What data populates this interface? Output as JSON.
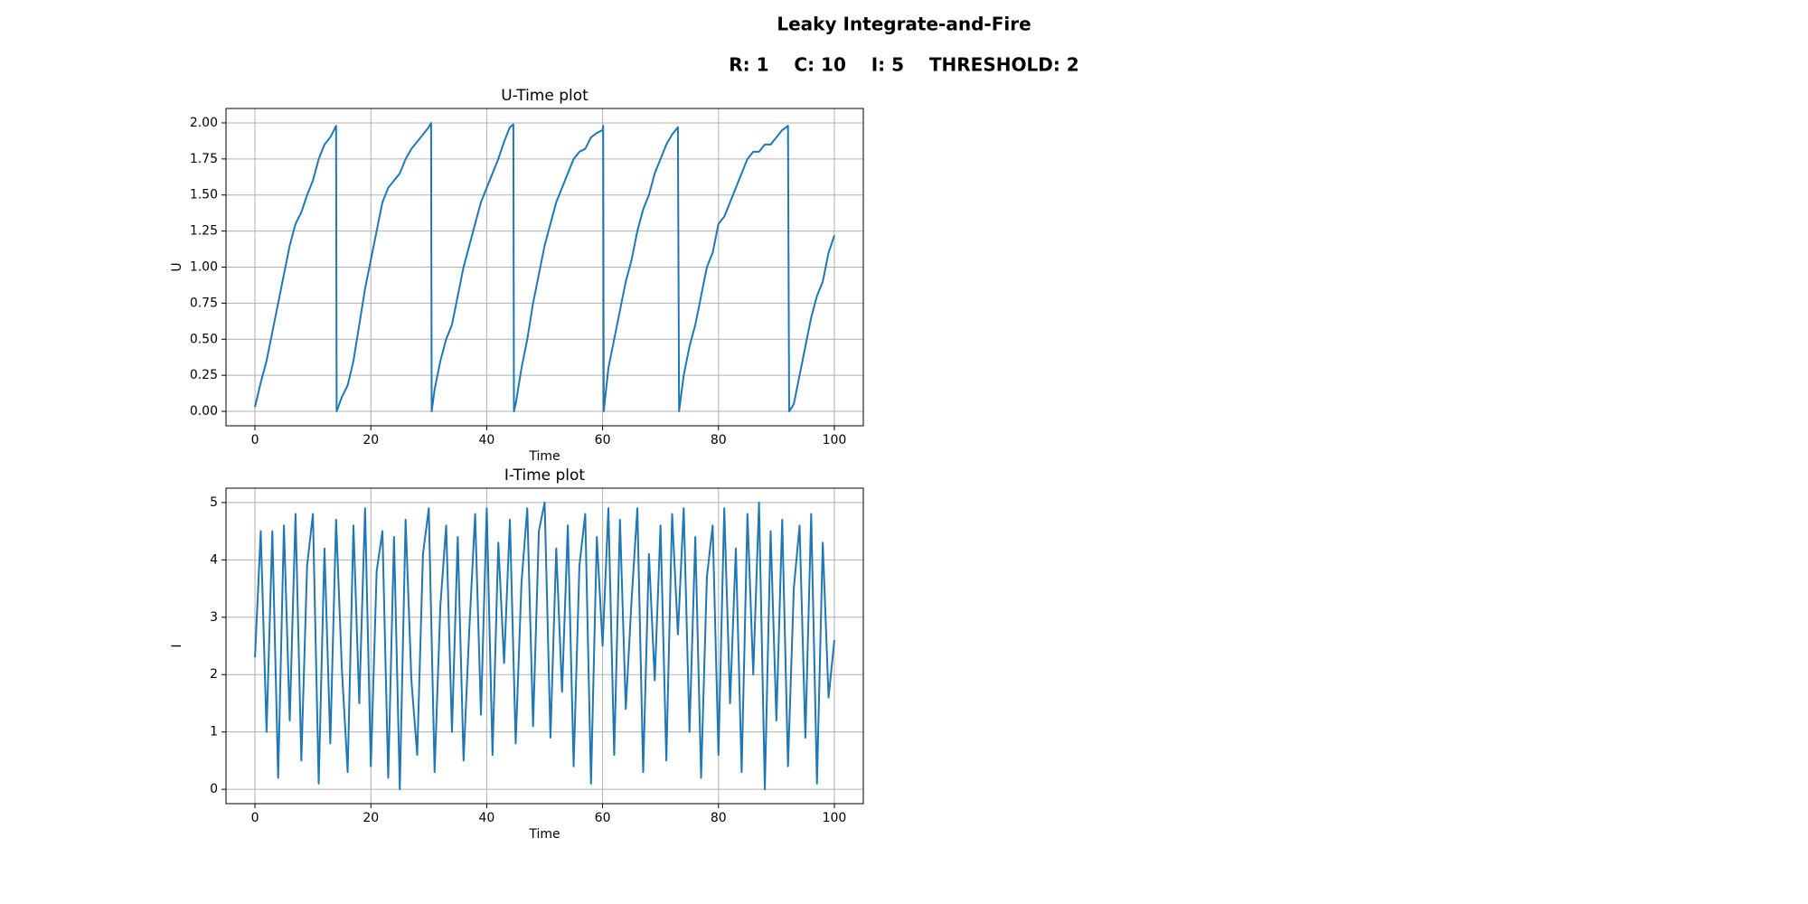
{
  "title": "Leaky Integrate-and-Fire",
  "subtitle": "R: 1    C: 10    I: 5    THRESHOLD: 2",
  "chart_data": [
    {
      "type": "line",
      "title": "U-Time plot",
      "x_label": "Time",
      "y_label": "U",
      "grid": true,
      "color": "#1f77b4",
      "xlim": [
        -5,
        105
      ],
      "xticks": [
        0,
        20,
        40,
        60,
        80,
        100
      ],
      "ylim": [
        -0.1,
        2.1
      ],
      "yticks": [
        {
          "value": 0,
          "label": "0.00"
        },
        {
          "value": 0.25,
          "label": "0.25"
        },
        {
          "value": 0.5,
          "label": "0.50"
        },
        {
          "value": 0.75,
          "label": "0.75"
        },
        {
          "value": 1,
          "label": "1.00"
        },
        {
          "value": 1.25,
          "label": "1.25"
        },
        {
          "value": 1.5,
          "label": "1.50"
        },
        {
          "value": 1.75,
          "label": "1.75"
        },
        {
          "value": 2,
          "label": "2.00"
        }
      ],
      "x": [
        0,
        1,
        2,
        3,
        4,
        5,
        6,
        7,
        8,
        9,
        10,
        11,
        12,
        13,
        14,
        14.1,
        15,
        16,
        17,
        18,
        19,
        20,
        21,
        22,
        23,
        24,
        25,
        26,
        27,
        28,
        29,
        30,
        30.4,
        30.5,
        31,
        32,
        33,
        34,
        35,
        36,
        37,
        38,
        39,
        40,
        41,
        42,
        43,
        44,
        44.6,
        44.7,
        45,
        46,
        47,
        48,
        49,
        50,
        51,
        52,
        53,
        54,
        55,
        56,
        57,
        58,
        59,
        60,
        60.1,
        60.2,
        61,
        62,
        63,
        64,
        65,
        66,
        67,
        68,
        69,
        70,
        71,
        72,
        73,
        73.2,
        74,
        75,
        76,
        77,
        78,
        79,
        80,
        81,
        82,
        83,
        84,
        85,
        86,
        87,
        88,
        89,
        90,
        91,
        92,
        92.2,
        93,
        94,
        95,
        96,
        97,
        98,
        99,
        100
      ],
      "values": [
        0.03,
        0.2,
        0.35,
        0.55,
        0.75,
        0.95,
        1.15,
        1.3,
        1.38,
        1.5,
        1.6,
        1.75,
        1.85,
        1.9,
        1.98,
        0,
        0.1,
        0.18,
        0.35,
        0.6,
        0.85,
        1.05,
        1.25,
        1.45,
        1.55,
        1.6,
        1.65,
        1.75,
        1.82,
        1.87,
        1.92,
        1.97,
        2.0,
        0,
        0.15,
        0.35,
        0.5,
        0.6,
        0.8,
        1.0,
        1.15,
        1.3,
        1.45,
        1.55,
        1.65,
        1.75,
        1.87,
        1.97,
        1.99,
        0,
        0.05,
        0.3,
        0.5,
        0.75,
        0.95,
        1.15,
        1.3,
        1.45,
        1.55,
        1.65,
        1.75,
        1.8,
        1.82,
        1.9,
        1.93,
        1.95,
        1.98,
        0,
        0.3,
        0.5,
        0.7,
        0.9,
        1.05,
        1.25,
        1.4,
        1.5,
        1.65,
        1.75,
        1.85,
        1.92,
        1.97,
        0,
        0.25,
        0.45,
        0.6,
        0.8,
        1.0,
        1.1,
        1.3,
        1.35,
        1.45,
        1.55,
        1.65,
        1.75,
        1.8,
        1.8,
        1.85,
        1.85,
        1.9,
        1.95,
        1.98,
        0,
        0.05,
        0.25,
        0.45,
        0.65,
        0.8,
        0.9,
        1.1,
        1.22
      ]
    },
    {
      "type": "line",
      "title": "I-Time plot",
      "x_label": "Time",
      "y_label": "I",
      "grid": true,
      "color": "#1f77b4",
      "xlim": [
        -5,
        105
      ],
      "xticks": [
        0,
        20,
        40,
        60,
        80,
        100
      ],
      "ylim": [
        -0.25,
        5.25
      ],
      "yticks": [
        0,
        1,
        2,
        3,
        4,
        5
      ],
      "x": [
        0,
        1,
        2,
        3,
        4,
        5,
        6,
        7,
        8,
        9,
        10,
        11,
        12,
        13,
        14,
        15,
        16,
        17,
        18,
        19,
        20,
        21,
        22,
        23,
        24,
        25,
        26,
        27,
        28,
        29,
        30,
        31,
        32,
        33,
        34,
        35,
        36,
        37,
        38,
        39,
        40,
        41,
        42,
        43,
        44,
        45,
        46,
        47,
        48,
        49,
        50,
        51,
        52,
        53,
        54,
        55,
        56,
        57,
        58,
        59,
        60,
        61,
        62,
        63,
        64,
        65,
        66,
        67,
        68,
        69,
        70,
        71,
        72,
        73,
        74,
        75,
        76,
        77,
        78,
        79,
        80,
        81,
        82,
        83,
        84,
        85,
        86,
        87,
        88,
        89,
        90,
        91,
        92,
        93,
        94,
        95,
        96,
        97,
        98,
        99,
        100
      ],
      "values": [
        2.3,
        4.5,
        1.0,
        4.5,
        0.2,
        4.6,
        1.2,
        4.8,
        0.5,
        3.9,
        4.8,
        0.1,
        4.2,
        0.8,
        4.7,
        2.1,
        0.3,
        4.6,
        1.5,
        4.9,
        0.4,
        3.8,
        4.5,
        0.2,
        4.4,
        0.0,
        4.7,
        1.9,
        0.6,
        4.1,
        4.9,
        0.3,
        3.2,
        4.6,
        1.0,
        4.4,
        0.5,
        2.8,
        4.8,
        1.3,
        4.9,
        0.6,
        4.3,
        2.2,
        4.7,
        0.8,
        3.6,
        4.9,
        1.1,
        4.5,
        5.0,
        0.9,
        4.2,
        1.7,
        4.6,
        0.4,
        3.9,
        4.8,
        0.1,
        4.4,
        2.5,
        4.9,
        0.6,
        4.7,
        1.4,
        3.3,
        4.9,
        0.3,
        4.1,
        1.9,
        4.6,
        0.5,
        4.8,
        2.7,
        4.9,
        1.0,
        4.4,
        0.2,
        3.7,
        4.6,
        0.6,
        4.9,
        1.5,
        4.2,
        0.3,
        4.8,
        2.0,
        5.0,
        0.0,
        4.5,
        1.2,
        4.7,
        0.4,
        3.5,
        4.6,
        0.9,
        4.8,
        0.1,
        4.3,
        1.6,
        2.6
      ]
    }
  ]
}
